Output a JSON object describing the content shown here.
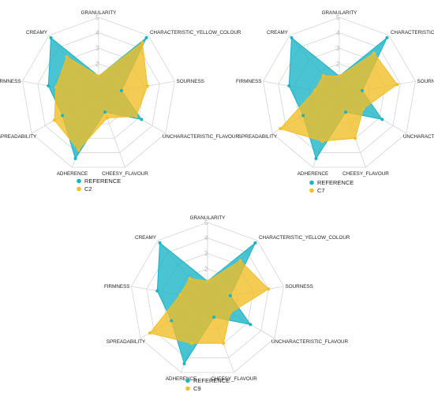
{
  "colors": {
    "reference": "#17b3c6",
    "candidate": "#f2be22",
    "grid": "#d4d4d4"
  },
  "chart_data": [
    {
      "type": "radar",
      "axes": [
        "GRANULARITY",
        "CHARACTERISTIC_YELLOW_COLOUR",
        "SOURNESS",
        "UNCHARACTERISTIC_FLAVOUR",
        "CHEESY_FLAVOUR",
        "ADHERENCE",
        "SPREADABILITY",
        "FIRMNESS",
        "CREAMY"
      ],
      "ticks": [
        1,
        2,
        3,
        4,
        5
      ],
      "range": [
        0,
        5
      ],
      "series": [
        {
          "name": "REFERENCE",
          "values": [
            1.2,
            4.8,
            1.5,
            3.2,
            1.2,
            4.4,
            2.7,
            3.3,
            4.8
          ]
        },
        {
          "name": "C2",
          "values": [
            1.2,
            4.4,
            3.2,
            2.8,
            1.6,
            3.8,
            3.3,
            2.8,
            3.2
          ]
        }
      ],
      "legend_position": "bottom-left"
    },
    {
      "type": "radar",
      "axes": [
        "GRANULARITY",
        "CHARACTERISTIC_YELLOW_COLOUR",
        "SOURNESS",
        "UNCHARACTERISTIC_FLAVOUR",
        "CHEESY_FLAVOUR",
        "ADHERENCE",
        "SPREADABILITY",
        "FIRMNESS",
        "CREAMY"
      ],
      "ticks": [
        1,
        2,
        3,
        4,
        5
      ],
      "range": [
        0,
        5
      ],
      "series": [
        {
          "name": "REFERENCE",
          "values": [
            1.2,
            4.8,
            1.5,
            3.2,
            1.2,
            4.4,
            2.7,
            3.3,
            4.8
          ]
        },
        {
          "name": "C7",
          "values": [
            1.2,
            3.5,
            3.8,
            1.8,
            3.0,
            3.2,
            4.4,
            1.6,
            1.6
          ]
        }
      ],
      "legend_position": "bottom-left"
    },
    {
      "type": "radar",
      "axes": [
        "GRANULARITY",
        "CHARACTERISTIC_YELLOW_COLOUR",
        "SOURNESS",
        "UNCHARACTERISTIC_FLAVOUR",
        "CHEESY_FLAVOUR",
        "ADHERENCE",
        "SPREADABILITY",
        "FIRMNESS",
        "CREAMY"
      ],
      "ticks": [
        1,
        2,
        3,
        4,
        5
      ],
      "range": [
        0,
        5
      ],
      "series": [
        {
          "name": "REFERENCE",
          "values": [
            1.2,
            4.8,
            1.5,
            3.2,
            1.2,
            4.4,
            2.7,
            3.3,
            4.8
          ]
        },
        {
          "name": "C9",
          "values": [
            1.2,
            3.3,
            4.0,
            1.7,
            3.0,
            3.0,
            4.3,
            1.8,
            1.8
          ]
        }
      ],
      "legend_position": "bottom-left"
    }
  ]
}
